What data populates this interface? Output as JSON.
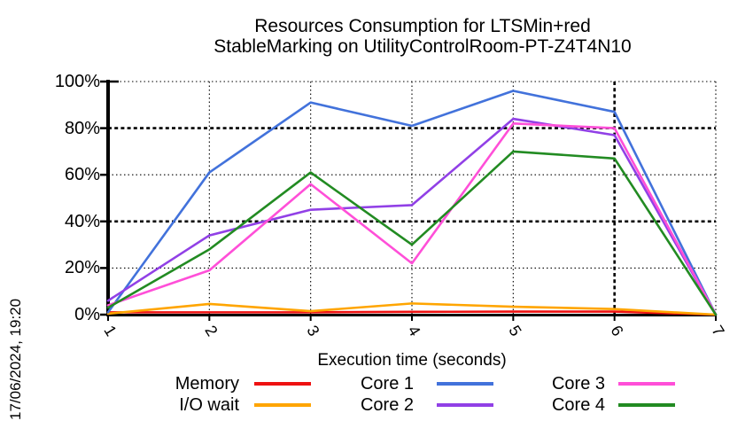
{
  "title": {
    "line1": "Resources Consumption for LTSMin+red",
    "line2": "StableMarking on UtilityControlRoom-PT-Z4T4N10"
  },
  "date_label": "17/06/2024, 19:20",
  "chart_data": {
    "type": "line",
    "title": "Resources Consumption for LTSMin+red StableMarking on UtilityControlRoom-PT-Z4T4N10",
    "xlabel": "Execution time (seconds)",
    "ylabel": "",
    "x": [
      1,
      2,
      3,
      4,
      5,
      6,
      7
    ],
    "xlim": [
      1,
      7
    ],
    "ylim": [
      0,
      100
    ],
    "yticks": [
      0,
      20,
      40,
      60,
      80,
      100
    ],
    "ytick_suffix": "%",
    "grid": true,
    "legend_position": "bottom",
    "series": [
      {
        "name": "Memory",
        "color": "#ee1111",
        "values": [
          1,
          1,
          1,
          1.2,
          1.3,
          1.3,
          0
        ]
      },
      {
        "name": "I/O wait",
        "color": "#ffa500",
        "values": [
          0.4,
          4.6,
          1.5,
          4.8,
          3.4,
          2.4,
          0
        ]
      },
      {
        "name": "Core 1",
        "color": "#4272db",
        "values": [
          1,
          61,
          91,
          81,
          96,
          87,
          0
        ]
      },
      {
        "name": "Core 2",
        "color": "#9140e6",
        "values": [
          6,
          34,
          45,
          47,
          84,
          77,
          0
        ]
      },
      {
        "name": "Core 3",
        "color": "#ff4fd8",
        "values": [
          4,
          19,
          56,
          22,
          82,
          80,
          0
        ]
      },
      {
        "name": "Core 4",
        "color": "#228b22",
        "values": [
          3,
          28,
          61,
          30,
          70,
          67,
          0
        ]
      }
    ]
  }
}
